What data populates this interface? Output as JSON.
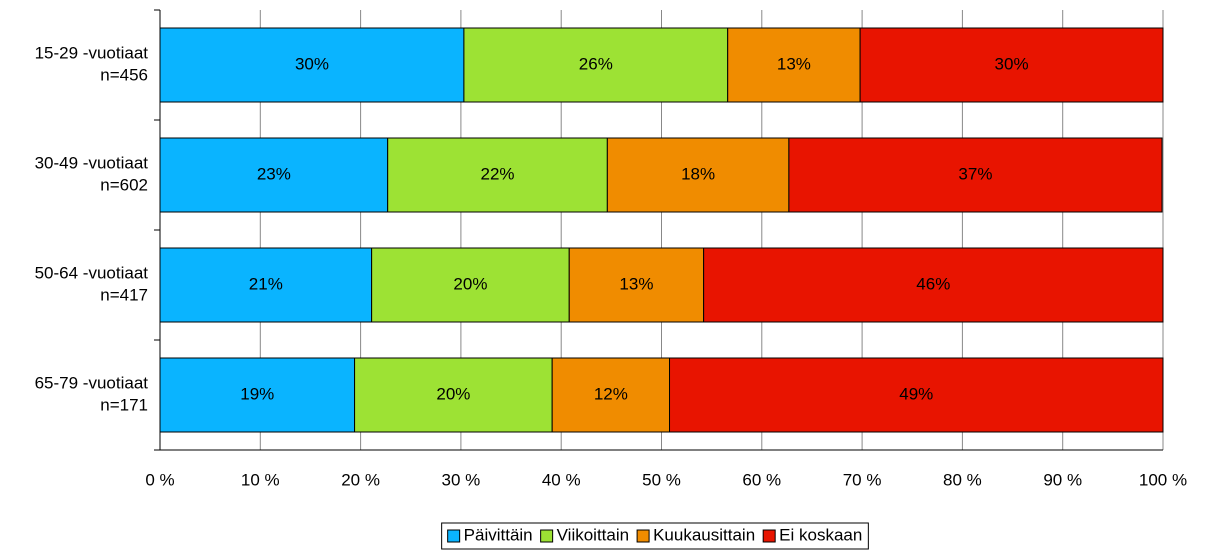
{
  "chart_data": {
    "type": "bar",
    "orientation": "horizontal",
    "stacked": true,
    "categories": [
      [
        "15-29 -vuotiaat",
        "n=456"
      ],
      [
        "30-49 -vuotiaat",
        "n=602"
      ],
      [
        "50-64 -vuotiaat",
        "n=417"
      ],
      [
        "65-79 -vuotiaat",
        "n=171"
      ]
    ],
    "series": [
      {
        "name": "Päivittäin",
        "color": "#0ab4ff",
        "values": [
          30.3,
          22.7,
          21.1,
          19.4
        ],
        "value_labels": [
          "30%",
          "23%",
          "21%",
          "19%"
        ]
      },
      {
        "name": "Viikoittain",
        "color": "#9de234",
        "values": [
          26.3,
          21.9,
          19.7,
          19.7
        ],
        "value_labels": [
          "26%",
          "22%",
          "20%",
          "20%"
        ]
      },
      {
        "name": "Kuukausittain",
        "color": "#f08c00",
        "values": [
          13.2,
          18.1,
          13.4,
          11.7
        ],
        "value_labels": [
          "13%",
          "18%",
          "13%",
          "12%"
        ]
      },
      {
        "name": "Ei koskaan",
        "color": "#e81400",
        "values": [
          30.2,
          37.2,
          45.8,
          49.2
        ],
        "value_labels": [
          "30%",
          "37%",
          "46%",
          "49%"
        ]
      }
    ],
    "xlim": [
      0,
      100
    ],
    "xticks": [
      {
        "value": 0,
        "label": "0 %"
      },
      {
        "value": 10,
        "label": "10 %"
      },
      {
        "value": 20,
        "label": "20 %"
      },
      {
        "value": 30,
        "label": "30 %"
      },
      {
        "value": 40,
        "label": "40 %"
      },
      {
        "value": 50,
        "label": "50 %"
      },
      {
        "value": 60,
        "label": "60 %"
      },
      {
        "value": 70,
        "label": "70 %"
      },
      {
        "value": 80,
        "label": "80 %"
      },
      {
        "value": 90,
        "label": "90 %"
      },
      {
        "value": 100,
        "label": "100 %"
      }
    ],
    "grid": true,
    "legend": "bottom"
  }
}
